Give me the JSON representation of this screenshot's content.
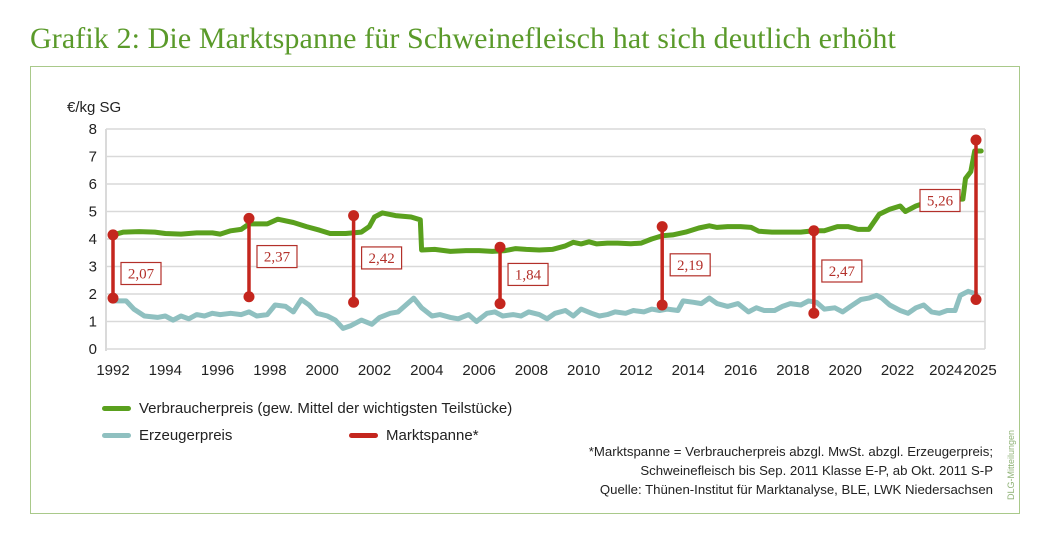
{
  "title": "Grafik 2: Die Marktspanne für Schweinefleisch hat sich deutlich erhöht",
  "credit": "DLG-Mitteilungen",
  "chart_data": {
    "type": "line",
    "title": "Grafik 2: Die Marktspanne für Schweinefleisch hat sich deutlich erhöht",
    "ylabel": "€/kg SG",
    "xlabel": "",
    "ylim": [
      0,
      8
    ],
    "xlim": [
      1992,
      2025
    ],
    "grid": true,
    "yticks": [
      "0",
      "1",
      "2",
      "3",
      "4",
      "5",
      "6",
      "7",
      "8"
    ],
    "xticks": [
      {
        "x": 1992,
        "label": "1992"
      },
      {
        "x": 1994,
        "label": "1994"
      },
      {
        "x": 1996,
        "label": "1996"
      },
      {
        "x": 1998,
        "label": "1998"
      },
      {
        "x": 2000,
        "label": "2000"
      },
      {
        "x": 2002,
        "label": "2002"
      },
      {
        "x": 2004,
        "label": "2004"
      },
      {
        "x": 2006,
        "label": "2006"
      },
      {
        "x": 2008,
        "label": "2008"
      },
      {
        "x": 2010,
        "label": "2010"
      },
      {
        "x": 2012,
        "label": "2012"
      },
      {
        "x": 2014,
        "label": "2014"
      },
      {
        "x": 2016,
        "label": "2016"
      },
      {
        "x": 2018,
        "label": "2018"
      },
      {
        "x": 2020,
        "label": "2020"
      },
      {
        "x": 2022,
        "label": "2022"
      },
      {
        "x": 2024,
        "label": "2024"
      },
      {
        "x": 2025,
        "label": "2025"
      }
    ],
    "legend_position": "bottom-left",
    "series": [
      {
        "name": "Verbraucherpreis (gew. Mittel der wichtigsten Teilstücke)",
        "color": "#5aa01e",
        "points": [
          [
            1992,
            4.15
          ],
          [
            1992.4,
            4.25
          ],
          [
            1993,
            4.27
          ],
          [
            1993.6,
            4.25
          ],
          [
            1994,
            4.2
          ],
          [
            1994.6,
            4.18
          ],
          [
            1995.2,
            4.22
          ],
          [
            1995.8,
            4.22
          ],
          [
            1996.1,
            4.18
          ],
          [
            1996.5,
            4.3
          ],
          [
            1996.9,
            4.35
          ],
          [
            1997.2,
            4.55
          ],
          [
            1997.6,
            4.55
          ],
          [
            1997.9,
            4.55
          ],
          [
            1998.3,
            4.72
          ],
          [
            1998.9,
            4.6
          ],
          [
            1999.4,
            4.45
          ],
          [
            1999.9,
            4.32
          ],
          [
            2000.3,
            4.2
          ],
          [
            2000.9,
            4.2
          ],
          [
            2001.5,
            4.25
          ],
          [
            2001.8,
            4.45
          ],
          [
            2002,
            4.8
          ],
          [
            2002.3,
            4.95
          ],
          [
            2002.8,
            4.85
          ],
          [
            2003.4,
            4.8
          ],
          [
            2003.75,
            4.7
          ],
          [
            2003.8,
            3.6
          ],
          [
            2004.3,
            3.62
          ],
          [
            2004.9,
            3.55
          ],
          [
            2005.5,
            3.58
          ],
          [
            2006,
            3.58
          ],
          [
            2006.5,
            3.55
          ],
          [
            2007,
            3.58
          ],
          [
            2007.4,
            3.65
          ],
          [
            2007.8,
            3.62
          ],
          [
            2008.3,
            3.6
          ],
          [
            2008.8,
            3.62
          ],
          [
            2009.3,
            3.75
          ],
          [
            2009.6,
            3.88
          ],
          [
            2009.9,
            3.82
          ],
          [
            2010.2,
            3.9
          ],
          [
            2010.5,
            3.82
          ],
          [
            2010.9,
            3.85
          ],
          [
            2011.3,
            3.85
          ],
          [
            2011.8,
            3.83
          ],
          [
            2012.2,
            3.85
          ],
          [
            2012.6,
            4.0
          ],
          [
            2013,
            4.12
          ],
          [
            2013.4,
            4.15
          ],
          [
            2013.9,
            4.25
          ],
          [
            2014.4,
            4.4
          ],
          [
            2014.8,
            4.48
          ],
          [
            2015.1,
            4.42
          ],
          [
            2015.5,
            4.45
          ],
          [
            2016,
            4.45
          ],
          [
            2016.4,
            4.42
          ],
          [
            2016.7,
            4.28
          ],
          [
            2017.2,
            4.25
          ],
          [
            2017.8,
            4.25
          ],
          [
            2018.3,
            4.25
          ],
          [
            2018.8,
            4.3
          ],
          [
            2019.2,
            4.3
          ],
          [
            2019.7,
            4.45
          ],
          [
            2020.1,
            4.45
          ],
          [
            2020.5,
            4.35
          ],
          [
            2020.9,
            4.35
          ],
          [
            2021.3,
            4.9
          ],
          [
            2021.7,
            5.08
          ],
          [
            2022.1,
            5.2
          ],
          [
            2022.3,
            5.0
          ],
          [
            2022.7,
            5.2
          ],
          [
            2023,
            5.3
          ],
          [
            2023.4,
            5.2
          ],
          [
            2023.8,
            5.25
          ],
          [
            2024.1,
            5.45
          ],
          [
            2024.5,
            5.45
          ],
          [
            2024.6,
            6.2
          ],
          [
            2024.8,
            6.45
          ],
          [
            2024.95,
            7.2
          ],
          [
            2025.2,
            7.2
          ]
        ]
      },
      {
        "name": "Erzeugerpreis",
        "color": "#8fc0c0",
        "points": [
          [
            1992,
            1.75
          ],
          [
            1992.5,
            1.75
          ],
          [
            1992.8,
            1.45
          ],
          [
            1993.2,
            1.2
          ],
          [
            1993.7,
            1.15
          ],
          [
            1994,
            1.2
          ],
          [
            1994.3,
            1.05
          ],
          [
            1994.6,
            1.2
          ],
          [
            1994.9,
            1.1
          ],
          [
            1995.2,
            1.25
          ],
          [
            1995.5,
            1.2
          ],
          [
            1995.8,
            1.3
          ],
          [
            1996.1,
            1.25
          ],
          [
            1996.5,
            1.3
          ],
          [
            1996.9,
            1.25
          ],
          [
            1997.2,
            1.35
          ],
          [
            1997.5,
            1.2
          ],
          [
            1997.9,
            1.25
          ],
          [
            1998.2,
            1.6
          ],
          [
            1998.6,
            1.55
          ],
          [
            1998.9,
            1.35
          ],
          [
            1999.2,
            1.8
          ],
          [
            1999.5,
            1.6
          ],
          [
            1999.8,
            1.3
          ],
          [
            2000.2,
            1.2
          ],
          [
            2000.5,
            1.05
          ],
          [
            2000.8,
            0.75
          ],
          [
            2001.1,
            0.85
          ],
          [
            2001.5,
            1.05
          ],
          [
            2001.9,
            0.9
          ],
          [
            2002.2,
            1.15
          ],
          [
            2002.6,
            1.3
          ],
          [
            2002.9,
            1.35
          ],
          [
            2003.2,
            1.6
          ],
          [
            2003.5,
            1.85
          ],
          [
            2003.8,
            1.5
          ],
          [
            2004.2,
            1.2
          ],
          [
            2004.5,
            1.25
          ],
          [
            2004.9,
            1.15
          ],
          [
            2005.2,
            1.1
          ],
          [
            2005.6,
            1.25
          ],
          [
            2005.9,
            1.0
          ],
          [
            2006.3,
            1.3
          ],
          [
            2006.6,
            1.35
          ],
          [
            2006.9,
            1.2
          ],
          [
            2007.3,
            1.25
          ],
          [
            2007.6,
            1.2
          ],
          [
            2007.9,
            1.35
          ],
          [
            2008.3,
            1.25
          ],
          [
            2008.6,
            1.1
          ],
          [
            2008.9,
            1.3
          ],
          [
            2009.3,
            1.4
          ],
          [
            2009.6,
            1.2
          ],
          [
            2009.9,
            1.45
          ],
          [
            2010.3,
            1.3
          ],
          [
            2010.6,
            1.2
          ],
          [
            2010.9,
            1.25
          ],
          [
            2011.2,
            1.35
          ],
          [
            2011.6,
            1.3
          ],
          [
            2011.9,
            1.4
          ],
          [
            2012.3,
            1.35
          ],
          [
            2012.6,
            1.45
          ],
          [
            2012.9,
            1.4
          ],
          [
            2013.2,
            1.45
          ],
          [
            2013.6,
            1.4
          ],
          [
            2013.8,
            1.75
          ],
          [
            2014.2,
            1.7
          ],
          [
            2014.5,
            1.65
          ],
          [
            2014.8,
            1.85
          ],
          [
            2015.1,
            1.65
          ],
          [
            2015.5,
            1.55
          ],
          [
            2015.9,
            1.65
          ],
          [
            2016.3,
            1.35
          ],
          [
            2016.6,
            1.5
          ],
          [
            2016.9,
            1.4
          ],
          [
            2017.3,
            1.4
          ],
          [
            2017.6,
            1.55
          ],
          [
            2017.9,
            1.65
          ],
          [
            2018.3,
            1.6
          ],
          [
            2018.6,
            1.75
          ],
          [
            2018.9,
            1.7
          ],
          [
            2019.2,
            1.45
          ],
          [
            2019.6,
            1.5
          ],
          [
            2019.9,
            1.35
          ],
          [
            2020.2,
            1.55
          ],
          [
            2020.6,
            1.8
          ],
          [
            2020.9,
            1.85
          ],
          [
            2021.2,
            1.95
          ],
          [
            2021.4,
            1.85
          ],
          [
            2021.7,
            1.6
          ],
          [
            2022.1,
            1.4
          ],
          [
            2022.4,
            1.3
          ],
          [
            2022.7,
            1.5
          ],
          [
            2023,
            1.6
          ],
          [
            2023.3,
            1.35
          ],
          [
            2023.6,
            1.3
          ],
          [
            2023.9,
            1.4
          ],
          [
            2024.2,
            1.4
          ],
          [
            2024.4,
            1.95
          ],
          [
            2024.7,
            2.1
          ],
          [
            2025,
            2.0
          ]
        ]
      }
    ],
    "marktspanne": {
      "name": "Marktspanne*",
      "color": "#c4261e",
      "bars": [
        {
          "x": 1992.0,
          "top": 4.15,
          "bottom": 1.85,
          "label": "2,07"
        },
        {
          "x": 1997.2,
          "top": 4.75,
          "bottom": 1.9,
          "label": "2,37"
        },
        {
          "x": 2001.2,
          "top": 4.85,
          "bottom": 1.7,
          "label": "2,42"
        },
        {
          "x": 2006.8,
          "top": 3.7,
          "bottom": 1.65,
          "label": "1,84"
        },
        {
          "x": 2013.0,
          "top": 4.45,
          "bottom": 1.6,
          "label": "2,19"
        },
        {
          "x": 2018.8,
          "top": 4.3,
          "bottom": 1.3,
          "label": "2,47"
        },
        {
          "x": 2025.0,
          "top": 7.6,
          "bottom": 1.8,
          "label": "5,26"
        }
      ]
    }
  },
  "legend": {
    "items": [
      {
        "label": "Verbraucherpreis (gew. Mittel der wichtigsten Teilstücke)",
        "color": "#5aa01e"
      },
      {
        "label": "Erzeugerpreis",
        "color": "#8fc0c0"
      },
      {
        "label": "Marktspanne*",
        "color": "#c4261e"
      }
    ]
  },
  "notes": {
    "line1": "*Marktspanne = Verbraucherpreis abzgl. MwSt. abzgl. Erzeugerpreis;",
    "line2": "Schweinefleisch bis Sep. 2011 Klasse E-P, ab Okt. 2011 S-P",
    "line3": "Quelle: Thünen-Institut für Marktanalyse, BLE, LWK Niedersachsen"
  }
}
